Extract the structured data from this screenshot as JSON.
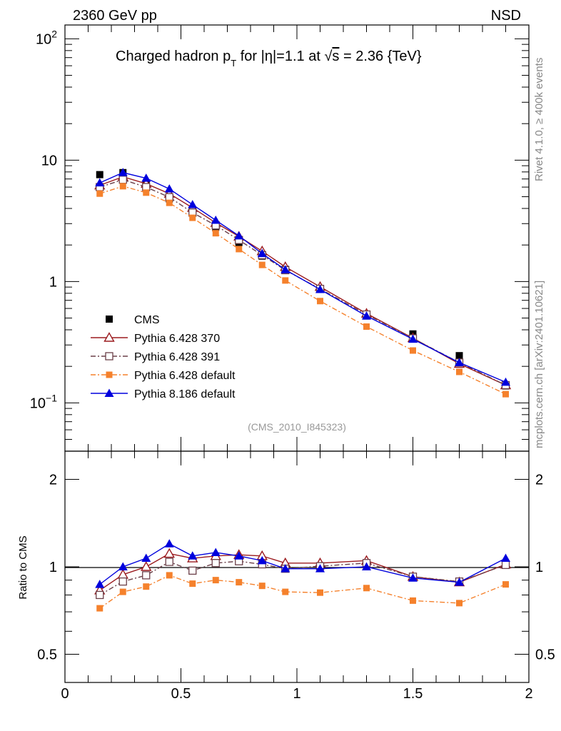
{
  "header": {
    "left_label": "2360 GeV pp",
    "right_label": "NSD",
    "side_label_top": "Rivet 4.1.0, ≥ 400k events",
    "side_label_bottom": "mcplots.cern.ch [arXiv:2401.10621]",
    "analysis_id": "(CMS_2010_I845323)"
  },
  "title_parts": {
    "a": "Charged hadron p",
    "sub": "T",
    "b": " for |η|=1.1 at ",
    "sqrt": "√",
    "s": "s",
    "c": " = 2.36 {TeV}"
  },
  "colors": {
    "cms": "#000000",
    "p370": "#9b1b1f",
    "p391": "#6b4049",
    "pdef": "#f5812c",
    "p8": "#0000dd"
  },
  "chart_data": [
    {
      "type": "line",
      "panel": "main",
      "yscale": "log",
      "xlim": [
        0,
        2
      ],
      "ylim": [
        0.04,
        130
      ],
      "y_ticks": [
        {
          "v": 0.1,
          "base": "10",
          "exp": "−1"
        },
        {
          "v": 1,
          "base": "1",
          "exp": ""
        },
        {
          "v": 10,
          "base": "10",
          "exp": ""
        },
        {
          "v": 100,
          "base": "10",
          "exp": "2"
        }
      ],
      "x": [
        0.15,
        0.25,
        0.35,
        0.45,
        0.55,
        0.65,
        0.75,
        0.85,
        0.95,
        1.1,
        1.3,
        1.5,
        1.7,
        1.9
      ],
      "series": [
        {
          "key": "cms",
          "name": "CMS",
          "style": "data",
          "values": [
            7.6,
            7.9,
            6.4,
            4.8,
            3.8,
            2.8,
            2.1,
            1.62,
            1.26,
            0.86,
            0.52,
            0.37,
            0.245,
            0.138
          ]
        },
        {
          "key": "p370",
          "name": "Pythia 6.428 370",
          "style": "triangle-open",
          "values": [
            6.2,
            7.3,
            6.4,
            5.3,
            4.05,
            3.05,
            2.35,
            1.78,
            1.32,
            0.905,
            0.545,
            0.342,
            0.21,
            0.14
          ]
        },
        {
          "key": "p391",
          "name": "Pythia 6.428 391",
          "style": "square-open",
          "values": [
            6.0,
            6.9,
            6.0,
            4.95,
            3.7,
            2.9,
            2.2,
            1.65,
            1.24,
            0.87,
            0.535,
            0.34,
            0.215,
            0.14
          ]
        },
        {
          "key": "pdef",
          "name": "Pythia 6.428 default",
          "style": "square-filled",
          "values": [
            5.3,
            6.1,
            5.4,
            4.45,
            3.35,
            2.5,
            1.85,
            1.37,
            1.02,
            0.69,
            0.425,
            0.27,
            0.18,
            0.118
          ]
        },
        {
          "key": "p8",
          "name": "Pythia 8.186 default",
          "style": "triangle-filled",
          "values": [
            6.5,
            7.9,
            7.1,
            5.8,
            4.3,
            3.2,
            2.38,
            1.7,
            1.25,
            0.86,
            0.52,
            0.335,
            0.215,
            0.148
          ]
        }
      ]
    },
    {
      "type": "line",
      "panel": "ratio",
      "ylabel": "Ratio to CMS",
      "yscale": "log",
      "xlim": [
        0,
        2
      ],
      "ylim": [
        0.4,
        2.5
      ],
      "y_ticks": [
        {
          "v": 0.5,
          "label": "0.5"
        },
        {
          "v": 1,
          "label": "1"
        },
        {
          "v": 2,
          "label": "2"
        }
      ],
      "x_ticks": [
        {
          "v": 0,
          "label": "0"
        },
        {
          "v": 0.5,
          "label": "0.5"
        },
        {
          "v": 1,
          "label": "1"
        },
        {
          "v": 1.5,
          "label": "1.5"
        },
        {
          "v": 2,
          "label": "2"
        }
      ],
      "x": [
        0.15,
        0.25,
        0.35,
        0.45,
        0.55,
        0.65,
        0.75,
        0.85,
        0.95,
        1.1,
        1.3,
        1.5,
        1.7,
        1.9
      ],
      "series": [
        {
          "key": "p370",
          "name": "Pythia 6.428 370",
          "style": "triangle-open",
          "values": [
            0.83,
            0.94,
            1.0,
            1.11,
            1.07,
            1.09,
            1.1,
            1.09,
            1.03,
            1.03,
            1.05,
            0.925,
            0.885,
            1.02
          ]
        },
        {
          "key": "p391",
          "name": "Pythia 6.428 391",
          "style": "square-open",
          "values": [
            0.8,
            0.89,
            0.935,
            1.04,
            0.97,
            1.03,
            1.045,
            1.02,
            0.985,
            1.005,
            1.03,
            0.925,
            0.89,
            1.015
          ]
        },
        {
          "key": "pdef",
          "name": "Pythia 6.428 default",
          "style": "square-filled",
          "values": [
            0.72,
            0.82,
            0.855,
            0.935,
            0.875,
            0.9,
            0.885,
            0.86,
            0.82,
            0.815,
            0.845,
            0.765,
            0.75,
            0.87
          ]
        },
        {
          "key": "p8",
          "name": "Pythia 8.186 default",
          "style": "triangle-filled",
          "values": [
            0.87,
            1.0,
            1.07,
            1.2,
            1.09,
            1.12,
            1.09,
            1.05,
            0.985,
            0.985,
            1.0,
            0.915,
            0.885,
            1.07
          ]
        }
      ]
    }
  ]
}
